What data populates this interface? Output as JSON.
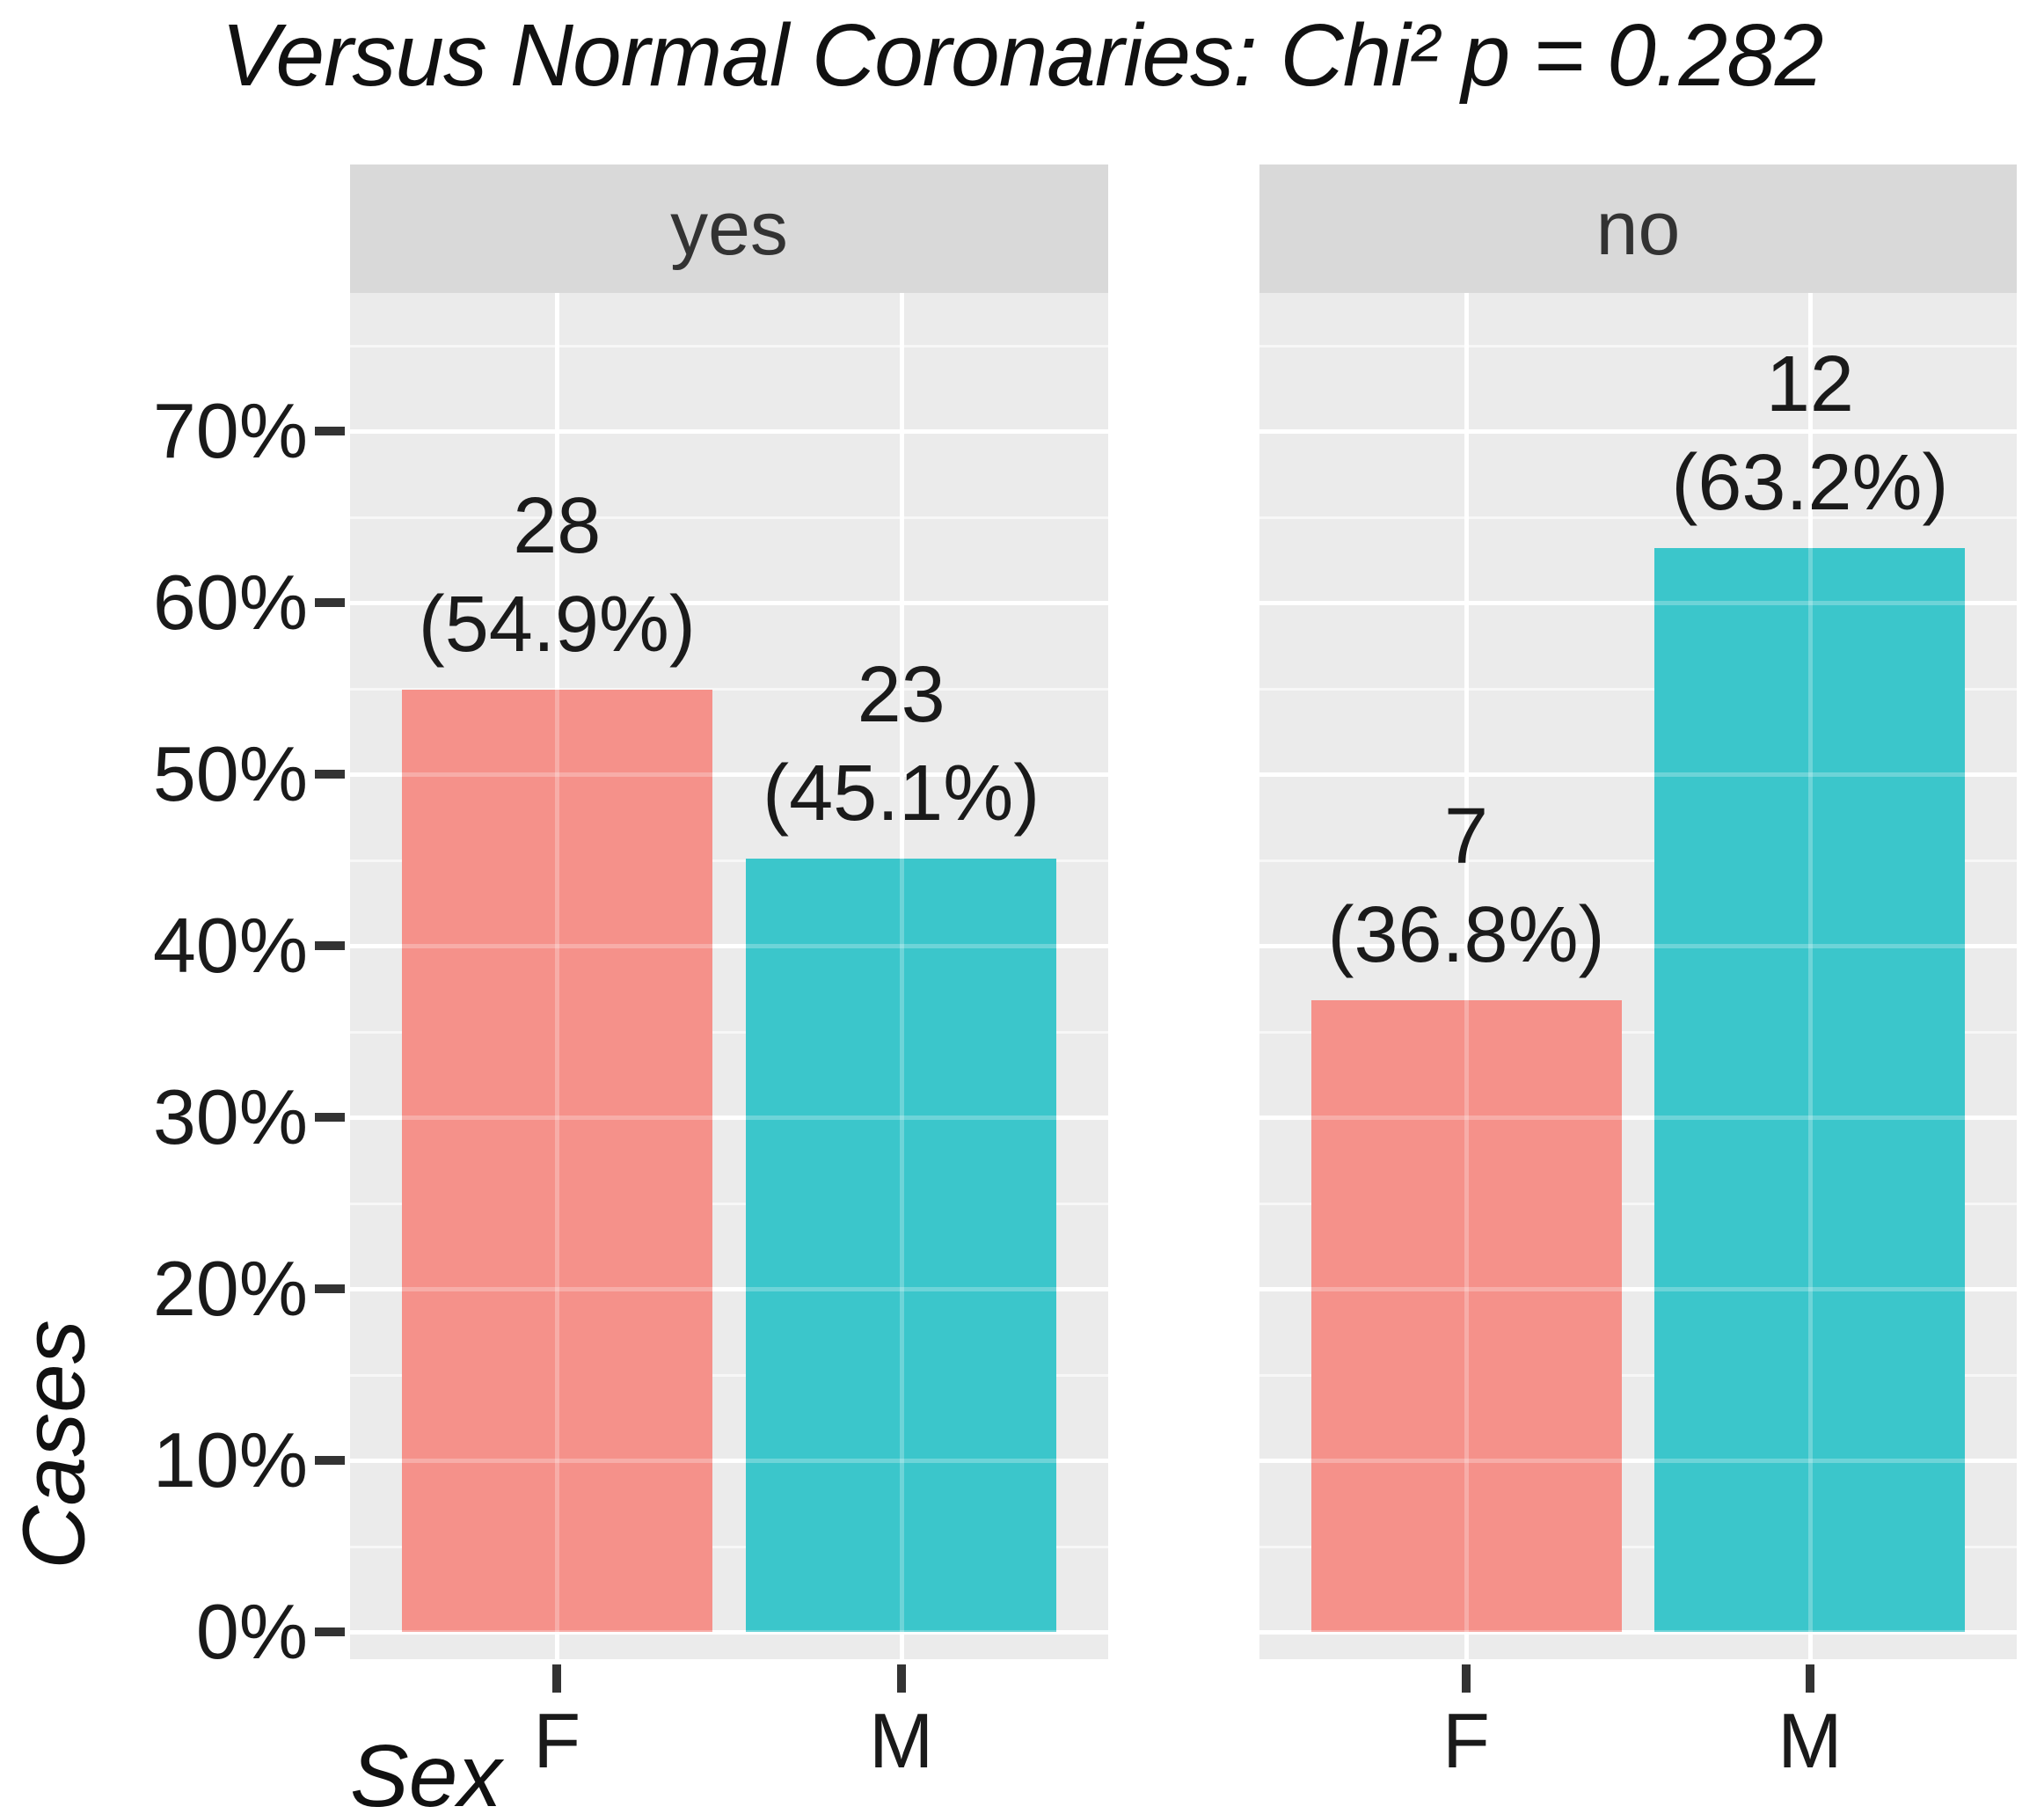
{
  "title": "Versus Normal Coronaries: Chi² p = 0.282",
  "chart_data": {
    "type": "bar",
    "title": "Versus Normal Coronaries: Chi² p = 0.282",
    "xlabel": "Sex",
    "ylabel": "Cases",
    "y_unit": "percent",
    "ylim": [
      0,
      78.3
    ],
    "grid": true,
    "legend_position": "none",
    "categories": [
      "F",
      "M"
    ],
    "y_major_ticks": [
      0,
      10,
      20,
      30,
      40,
      50,
      60,
      70
    ],
    "y_tick_labels": [
      "0%",
      "10%",
      "20%",
      "30%",
      "40%",
      "50%",
      "60%",
      "70%"
    ],
    "y_minor_ticks": [
      5,
      15,
      25,
      35,
      45,
      55,
      65,
      75
    ],
    "facets": [
      {
        "label": "yes",
        "bars": [
          {
            "category": "F",
            "count": 28,
            "pct": 54.9,
            "count_label": "28",
            "pct_label": "(54.9%)",
            "color_key": "F"
          },
          {
            "category": "M",
            "count": 23,
            "pct": 45.1,
            "count_label": "23",
            "pct_label": "(45.1%)",
            "color_key": "M"
          }
        ]
      },
      {
        "label": "no",
        "bars": [
          {
            "category": "F",
            "count": 7,
            "pct": 36.8,
            "count_label": "7",
            "pct_label": "(36.8%)",
            "color_key": "F"
          },
          {
            "category": "M",
            "count": 12,
            "pct": 63.2,
            "count_label": "12",
            "pct_label": "(63.2%)",
            "color_key": "M"
          }
        ]
      }
    ],
    "colors": {
      "F": "#F5918A",
      "M": "#3BC6CB",
      "panel_bg": "#EBEBEB",
      "strip_bg": "#D9D9D9",
      "grid_major": "#FFFFFF",
      "tick_mark": "#333333",
      "text": "#1A1A1A"
    }
  }
}
